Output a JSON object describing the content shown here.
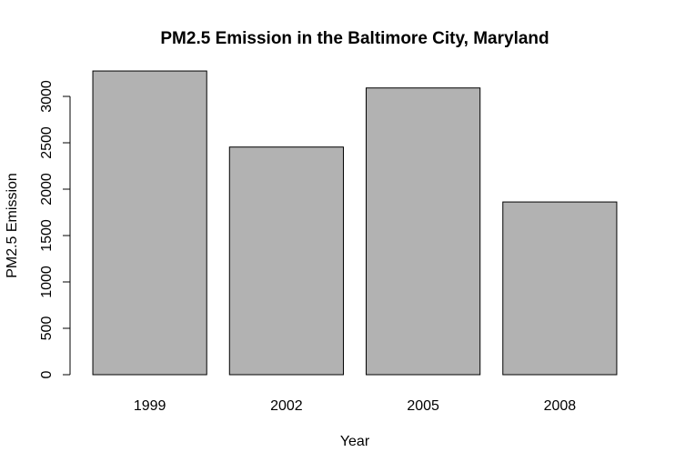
{
  "chart_data": {
    "type": "bar",
    "title": "PM2.5 Emission in the Baltimore City, Maryland",
    "xlabel": "Year",
    "ylabel": "PM2.5 Emission",
    "categories": [
      "1999",
      "2002",
      "2005",
      "2008"
    ],
    "values": [
      3274,
      2454,
      3091,
      1862
    ],
    "ylim": [
      0,
      3300
    ],
    "yticks": [
      0,
      500,
      1000,
      1500,
      2000,
      2500,
      3000
    ],
    "grid": false,
    "legend": "none",
    "bar_color": "#b2b2b2",
    "outline_color": "#000000"
  }
}
